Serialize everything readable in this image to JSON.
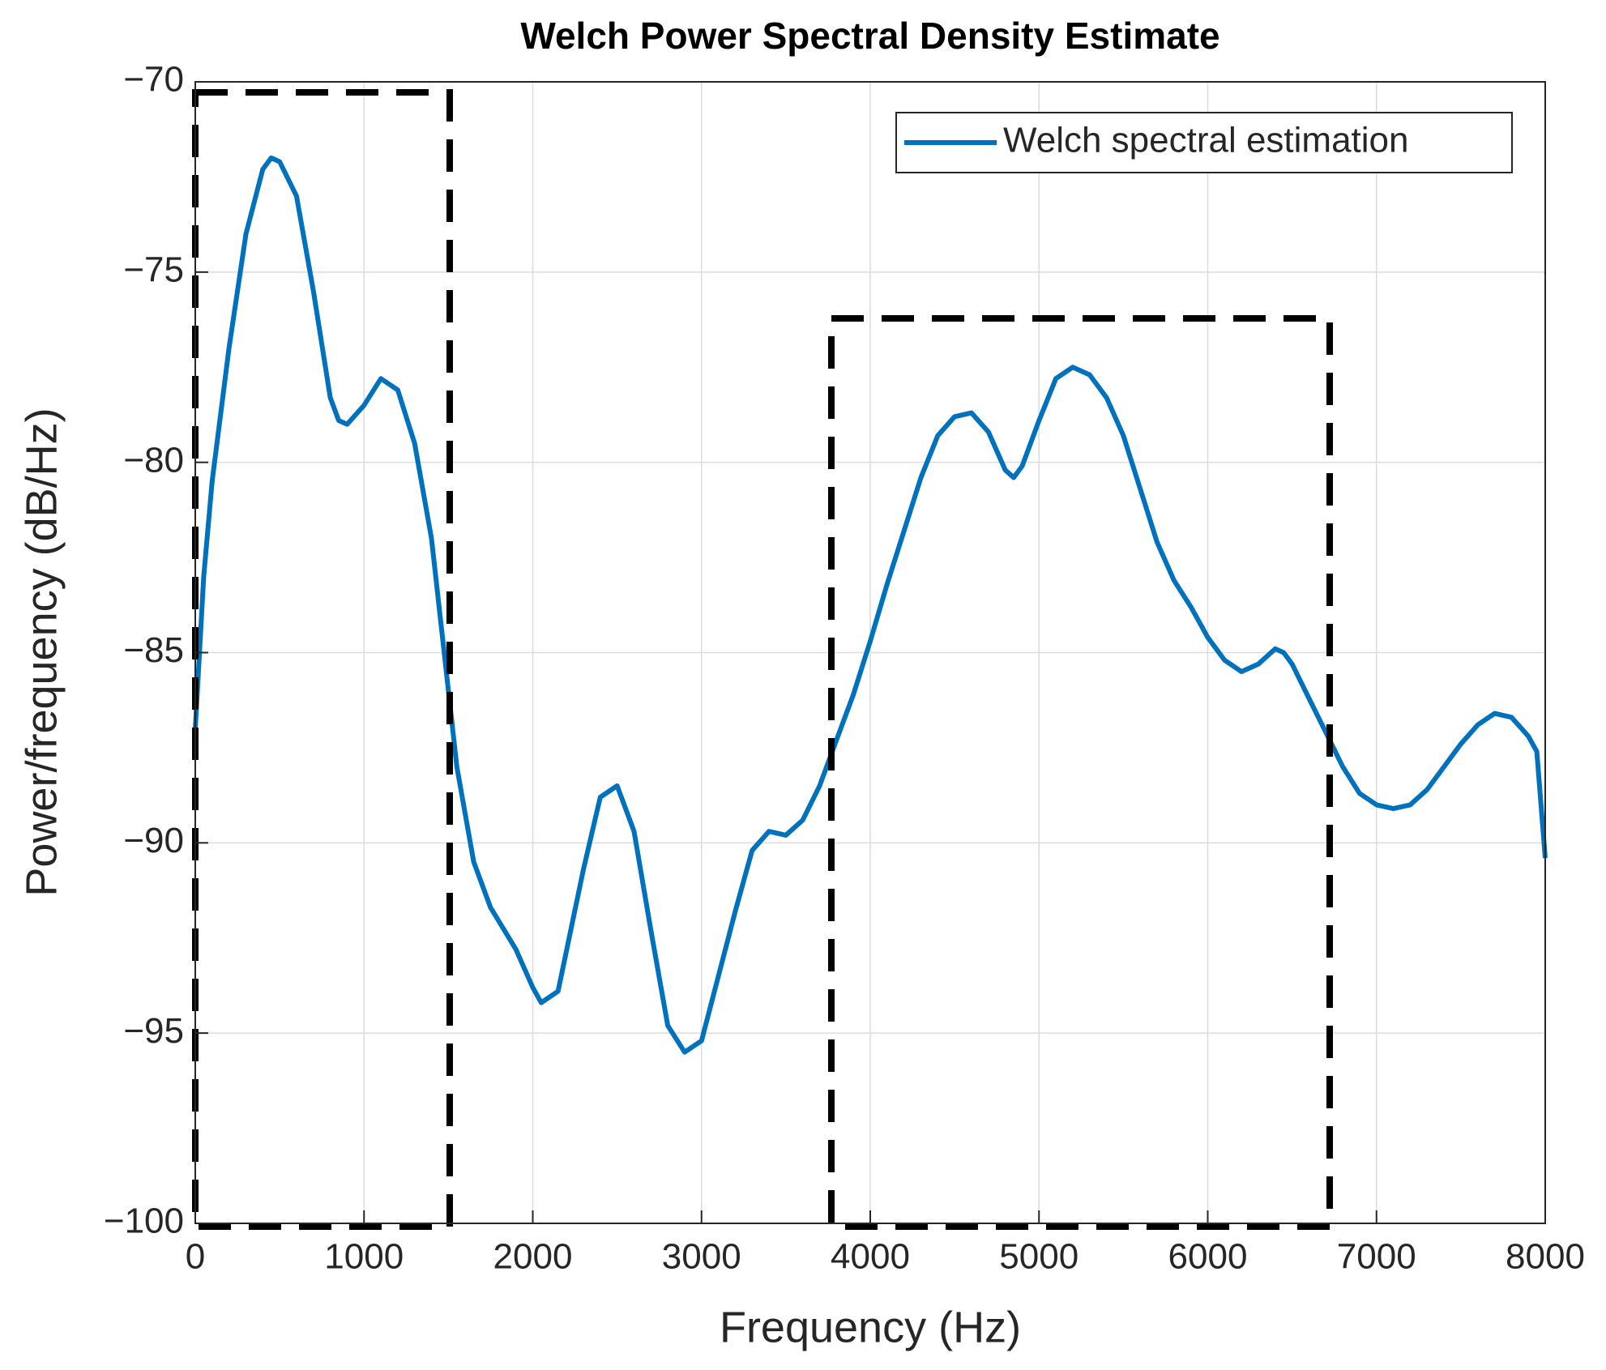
{
  "chart_data": {
    "type": "line",
    "title": "Welch Power Spectral Density Estimate",
    "xlabel": "Frequency (Hz)",
    "ylabel": "Power/frequency (dB/Hz)",
    "x": [
      0,
      50,
      100,
      200,
      300,
      400,
      450,
      500,
      600,
      700,
      800,
      850,
      900,
      1000,
      1100,
      1200,
      1300,
      1400,
      1500,
      1550,
      1650,
      1750,
      1900,
      2000,
      2050,
      2150,
      2300,
      2400,
      2500,
      2600,
      2700,
      2800,
      2900,
      3000,
      3100,
      3200,
      3300,
      3400,
      3500,
      3600,
      3700,
      3800,
      3900,
      4000,
      4100,
      4200,
      4300,
      4400,
      4500,
      4600,
      4700,
      4800,
      4850,
      4900,
      5000,
      5100,
      5200,
      5300,
      5400,
      5500,
      5600,
      5700,
      5800,
      5900,
      6000,
      6100,
      6200,
      6300,
      6400,
      6450,
      6500,
      6600,
      6700,
      6800,
      6900,
      7000,
      7100,
      7200,
      7300,
      7400,
      7500,
      7600,
      7700,
      7800,
      7900,
      7950,
      8000
    ],
    "series": [
      {
        "name": "Welch spectral estimation",
        "color": "#0072bd",
        "values": [
          -87,
          -83,
          -80.5,
          -77,
          -74,
          -72.3,
          -72,
          -72.1,
          -73,
          -75.5,
          -78.3,
          -78.9,
          -79,
          -78.5,
          -77.8,
          -78.1,
          -79.5,
          -82,
          -86,
          -88,
          -90.5,
          -91.7,
          -92.8,
          -93.8,
          -94.2,
          -93.9,
          -90.7,
          -88.8,
          -88.5,
          -89.7,
          -92.3,
          -94.8,
          -95.5,
          -95.2,
          -93.5,
          -91.8,
          -90.2,
          -89.7,
          -89.8,
          -89.4,
          -88.5,
          -87.3,
          -86.1,
          -84.7,
          -83.2,
          -81.8,
          -80.4,
          -79.3,
          -78.8,
          -78.7,
          -79.2,
          -80.2,
          -80.4,
          -80.1,
          -78.9,
          -77.8,
          -77.5,
          -77.7,
          -78.3,
          -79.3,
          -80.7,
          -82.1,
          -83.1,
          -83.8,
          -84.6,
          -85.2,
          -85.5,
          -85.3,
          -84.9,
          -85.0,
          -85.3,
          -86.2,
          -87.1,
          -88.0,
          -88.7,
          -89.0,
          -89.1,
          -89.0,
          -88.6,
          -88.0,
          -87.4,
          -86.9,
          -86.6,
          -86.7,
          -87.2,
          -87.6,
          -90.4
        ]
      }
    ],
    "xlim": [
      0,
      8000
    ],
    "xticks": [
      0,
      1000,
      2000,
      3000,
      4000,
      5000,
      6000,
      7000,
      8000
    ],
    "ylim": [
      -100,
      -70
    ],
    "yticks": [
      {
        "value": -100,
        "label": "−100"
      },
      {
        "value": -95,
        "label": "−95"
      },
      {
        "value": -90,
        "label": "−90"
      },
      {
        "value": -85,
        "label": "−85"
      },
      {
        "value": -80,
        "label": "−80"
      },
      {
        "value": -75,
        "label": "−75"
      },
      {
        "value": -70,
        "label": "−70"
      }
    ],
    "grid": true,
    "legend": "top-right"
  }
}
